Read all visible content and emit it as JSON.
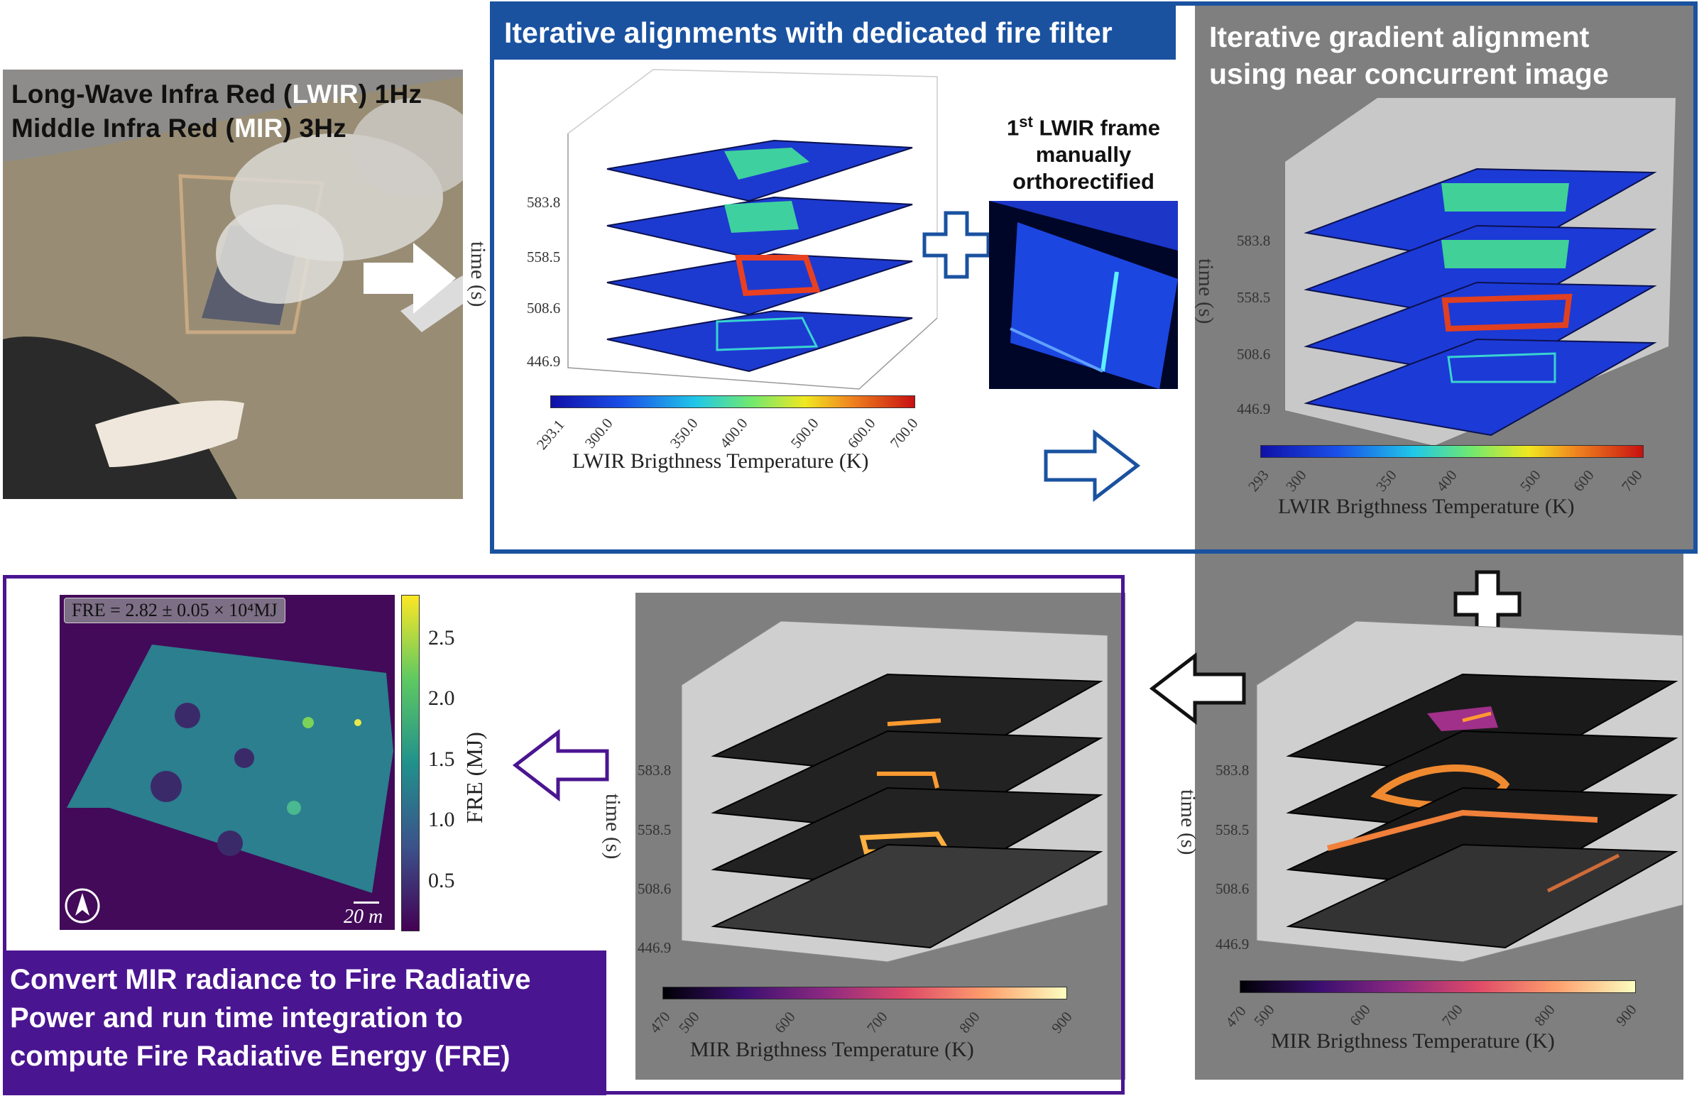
{
  "photo": {
    "line1_a": "Long-Wave Infra Red (",
    "line1_hl": "LWIR",
    "line1_b": ") 1Hz",
    "line2_a": "Middle Infra Red (",
    "line2_hl": "MIR",
    "line2_b": ") 3Hz"
  },
  "step1": {
    "title": "Iterative alignments with dedicated fire filter",
    "time_axis": "time (s)",
    "time_ticks": [
      "583.8",
      "558.5",
      "508.6",
      "446.9"
    ],
    "colorbar_ticks": [
      "293.1",
      "300.0",
      "350.0",
      "400.0",
      "500.0",
      "600.0",
      "700.0"
    ],
    "colorbar_label": "LWIR Brigthness Temperature (K)",
    "ortho_sup_base": "1",
    "ortho_sup": "st",
    "ortho_line1_rest": " LWIR frame",
    "ortho_line2": "manually",
    "ortho_line3": "orthorectified"
  },
  "step2": {
    "title_line1": "Iterative gradient alignment",
    "title_line2": "using near concurrent image",
    "time_axis": "time (s)",
    "time_ticks": [
      "583.8",
      "558.5",
      "508.6",
      "446.9"
    ],
    "colorbar_ticks": [
      "293",
      "300",
      "350",
      "400",
      "500",
      "600",
      "700"
    ],
    "colorbar_label": "LWIR Brigthness Temperature (K)"
  },
  "step3": {
    "time_axis": "time (s)",
    "time_ticks": [
      "583.8",
      "558.5",
      "508.6",
      "446.9"
    ],
    "colorbar_ticks": [
      "470",
      "500",
      "600",
      "700",
      "800",
      "900"
    ],
    "colorbar_label": "MIR Brigthness Temperature (K)"
  },
  "step4": {
    "time_axis": "time (s)",
    "time_ticks": [
      "583.8",
      "558.5",
      "508.6",
      "446.9"
    ],
    "colorbar_ticks": [
      "470",
      "500",
      "600",
      "700",
      "800",
      "900"
    ],
    "colorbar_label": "MIR Brigthness Temperature (K)"
  },
  "fre": {
    "badge": "FRE = 2.82 ± 0.05 × 10⁴MJ",
    "colorbar_label": "FRE (MJ)",
    "colorbar_ticks": [
      "2.5",
      "2.0",
      "1.5",
      "1.0",
      "0.5"
    ],
    "scale": "20 m",
    "label_line1": "Convert MIR radiance to Fire Radiative",
    "label_line2": "Power and run time integration to",
    "label_line3": "compute Fire Radiative Energy (FRE)"
  },
  "colors": {
    "blue": "#1a52a0",
    "purple": "#4a1591",
    "gray": "#7f7f7f"
  }
}
